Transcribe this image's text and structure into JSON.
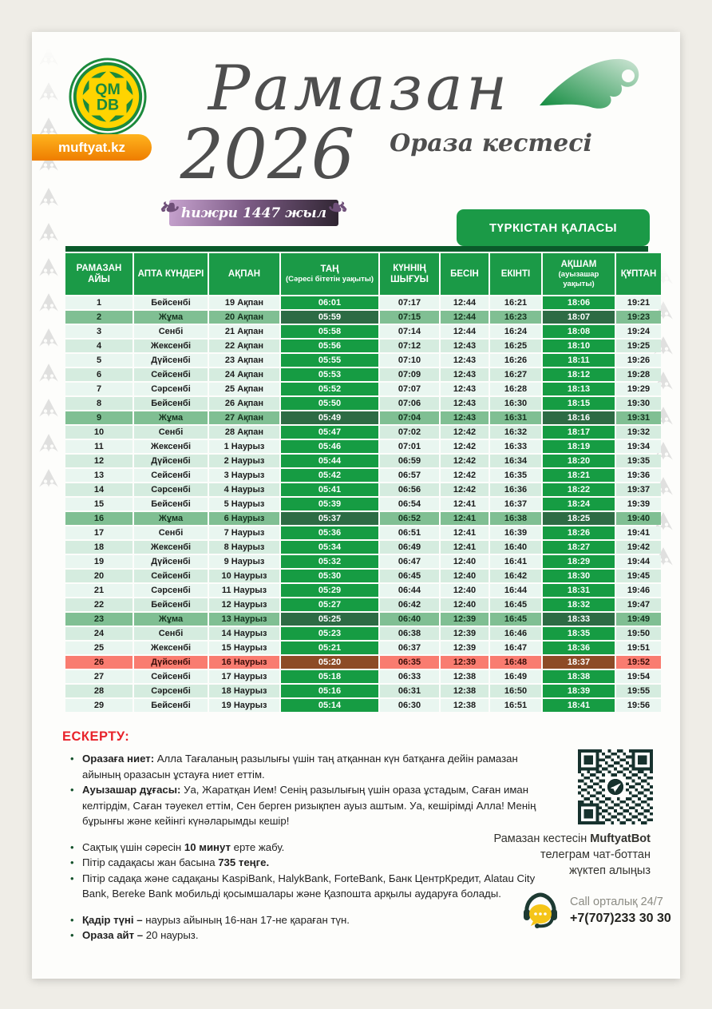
{
  "brand": {
    "logo_line1": "QM",
    "logo_line2": "DB",
    "site_label": "muftyat.kz"
  },
  "header": {
    "title_script": "Рамазан",
    "title_year": "2026",
    "subtitle": "Ораза кестесі",
    "hijri_ribbon": "һижри 1447 жыл",
    "city_button": "ТҮРКІСТАН ҚАЛАСЫ"
  },
  "table": {
    "columns": [
      {
        "label": "РАМАЗАН АЙЫ"
      },
      {
        "label": "АПТА КҮНДЕРІ"
      },
      {
        "label": "АҚПАН"
      },
      {
        "label": "ТАҢ",
        "sub": "(Сәресі бітетін уақыты)"
      },
      {
        "label": "КҮННІҢ ШЫҒУЫ"
      },
      {
        "label": "БЕСІН"
      },
      {
        "label": "ЕКІНТІ"
      },
      {
        "label": "АҚШАМ",
        "sub": "(ауызашар уақыты)"
      },
      {
        "label": "ҚҰПТАН"
      }
    ],
    "rows": [
      {
        "day": "1",
        "weekday": "Бейсенбі",
        "date": "19 Ақпан",
        "tan": "06:01",
        "sunrise": "07:17",
        "besin": "12:44",
        "ekinti": "16:21",
        "aqsham": "18:06",
        "quptan": "19:21",
        "highlight": ""
      },
      {
        "day": "2",
        "weekday": "Жұма",
        "date": "20 Ақпан",
        "tan": "05:59",
        "sunrise": "07:15",
        "besin": "12:44",
        "ekinti": "16:23",
        "aqsham": "18:07",
        "quptan": "19:23",
        "highlight": "friday"
      },
      {
        "day": "3",
        "weekday": "Сенбі",
        "date": "21 Ақпан",
        "tan": "05:58",
        "sunrise": "07:14",
        "besin": "12:44",
        "ekinti": "16:24",
        "aqsham": "18:08",
        "quptan": "19:24",
        "highlight": ""
      },
      {
        "day": "4",
        "weekday": "Жексенбі",
        "date": "22 Ақпан",
        "tan": "05:56",
        "sunrise": "07:12",
        "besin": "12:43",
        "ekinti": "16:25",
        "aqsham": "18:10",
        "quptan": "19:25",
        "highlight": ""
      },
      {
        "day": "5",
        "weekday": "Дүйсенбі",
        "date": "23 Ақпан",
        "tan": "05:55",
        "sunrise": "07:10",
        "besin": "12:43",
        "ekinti": "16:26",
        "aqsham": "18:11",
        "quptan": "19:26",
        "highlight": ""
      },
      {
        "day": "6",
        "weekday": "Сейсенбі",
        "date": "24 Ақпан",
        "tan": "05:53",
        "sunrise": "07:09",
        "besin": "12:43",
        "ekinti": "16:27",
        "aqsham": "18:12",
        "quptan": "19:28",
        "highlight": ""
      },
      {
        "day": "7",
        "weekday": "Сәрсенбі",
        "date": "25 Ақпан",
        "tan": "05:52",
        "sunrise": "07:07",
        "besin": "12:43",
        "ekinti": "16:28",
        "aqsham": "18:13",
        "quptan": "19:29",
        "highlight": ""
      },
      {
        "day": "8",
        "weekday": "Бейсенбі",
        "date": "26 Ақпан",
        "tan": "05:50",
        "sunrise": "07:06",
        "besin": "12:43",
        "ekinti": "16:30",
        "aqsham": "18:15",
        "quptan": "19:30",
        "highlight": ""
      },
      {
        "day": "9",
        "weekday": "Жұма",
        "date": "27 Ақпан",
        "tan": "05:49",
        "sunrise": "07:04",
        "besin": "12:43",
        "ekinti": "16:31",
        "aqsham": "18:16",
        "quptan": "19:31",
        "highlight": "friday"
      },
      {
        "day": "10",
        "weekday": "Сенбі",
        "date": "28 Ақпан",
        "tan": "05:47",
        "sunrise": "07:02",
        "besin": "12:42",
        "ekinti": "16:32",
        "aqsham": "18:17",
        "quptan": "19:32",
        "highlight": ""
      },
      {
        "day": "11",
        "weekday": "Жексенбі",
        "date": "1 Наурыз",
        "tan": "05:46",
        "sunrise": "07:01",
        "besin": "12:42",
        "ekinti": "16:33",
        "aqsham": "18:19",
        "quptan": "19:34",
        "highlight": ""
      },
      {
        "day": "12",
        "weekday": "Дүйсенбі",
        "date": "2 Наурыз",
        "tan": "05:44",
        "sunrise": "06:59",
        "besin": "12:42",
        "ekinti": "16:34",
        "aqsham": "18:20",
        "quptan": "19:35",
        "highlight": ""
      },
      {
        "day": "13",
        "weekday": "Сейсенбі",
        "date": "3 Наурыз",
        "tan": "05:42",
        "sunrise": "06:57",
        "besin": "12:42",
        "ekinti": "16:35",
        "aqsham": "18:21",
        "quptan": "19:36",
        "highlight": ""
      },
      {
        "day": "14",
        "weekday": "Сәрсенбі",
        "date": "4 Наурыз",
        "tan": "05:41",
        "sunrise": "06:56",
        "besin": "12:42",
        "ekinti": "16:36",
        "aqsham": "18:22",
        "quptan": "19:37",
        "highlight": ""
      },
      {
        "day": "15",
        "weekday": "Бейсенбі",
        "date": "5 Наурыз",
        "tan": "05:39",
        "sunrise": "06:54",
        "besin": "12:41",
        "ekinti": "16:37",
        "aqsham": "18:24",
        "quptan": "19:39",
        "highlight": ""
      },
      {
        "day": "16",
        "weekday": "Жұма",
        "date": "6 Наурыз",
        "tan": "05:37",
        "sunrise": "06:52",
        "besin": "12:41",
        "ekinti": "16:38",
        "aqsham": "18:25",
        "quptan": "19:40",
        "highlight": "friday"
      },
      {
        "day": "17",
        "weekday": "Сенбі",
        "date": "7 Наурыз",
        "tan": "05:36",
        "sunrise": "06:51",
        "besin": "12:41",
        "ekinti": "16:39",
        "aqsham": "18:26",
        "quptan": "19:41",
        "highlight": ""
      },
      {
        "day": "18",
        "weekday": "Жексенбі",
        "date": "8 Наурыз",
        "tan": "05:34",
        "sunrise": "06:49",
        "besin": "12:41",
        "ekinti": "16:40",
        "aqsham": "18:27",
        "quptan": "19:42",
        "highlight": ""
      },
      {
        "day": "19",
        "weekday": "Дүйсенбі",
        "date": "9 Наурыз",
        "tan": "05:32",
        "sunrise": "06:47",
        "besin": "12:40",
        "ekinti": "16:41",
        "aqsham": "18:29",
        "quptan": "19:44",
        "highlight": ""
      },
      {
        "day": "20",
        "weekday": "Сейсенбі",
        "date": "10 Наурыз",
        "tan": "05:30",
        "sunrise": "06:45",
        "besin": "12:40",
        "ekinti": "16:42",
        "aqsham": "18:30",
        "quptan": "19:45",
        "highlight": ""
      },
      {
        "day": "21",
        "weekday": "Сәрсенбі",
        "date": "11 Наурыз",
        "tan": "05:29",
        "sunrise": "06:44",
        "besin": "12:40",
        "ekinti": "16:44",
        "aqsham": "18:31",
        "quptan": "19:46",
        "highlight": ""
      },
      {
        "day": "22",
        "weekday": "Бейсенбі",
        "date": "12 Наурыз",
        "tan": "05:27",
        "sunrise": "06:42",
        "besin": "12:40",
        "ekinti": "16:45",
        "aqsham": "18:32",
        "quptan": "19:47",
        "highlight": ""
      },
      {
        "day": "23",
        "weekday": "Жұма",
        "date": "13 Наурыз",
        "tan": "05:25",
        "sunrise": "06:40",
        "besin": "12:39",
        "ekinti": "16:45",
        "aqsham": "18:33",
        "quptan": "19:49",
        "highlight": "friday"
      },
      {
        "day": "24",
        "weekday": "Сенбі",
        "date": "14 Наурыз",
        "tan": "05:23",
        "sunrise": "06:38",
        "besin": "12:39",
        "ekinti": "16:46",
        "aqsham": "18:35",
        "quptan": "19:50",
        "highlight": ""
      },
      {
        "day": "25",
        "weekday": "Жексенбі",
        "date": "15 Наурыз",
        "tan": "05:21",
        "sunrise": "06:37",
        "besin": "12:39",
        "ekinti": "16:47",
        "aqsham": "18:36",
        "quptan": "19:51",
        "highlight": ""
      },
      {
        "day": "26",
        "weekday": "Дүйсенбі",
        "date": "16 Наурыз",
        "tan": "05:20",
        "sunrise": "06:35",
        "besin": "12:39",
        "ekinti": "16:48",
        "aqsham": "18:37",
        "quptan": "19:52",
        "highlight": "qadir"
      },
      {
        "day": "27",
        "weekday": "Сейсенбі",
        "date": "17 Наурыз",
        "tan": "05:18",
        "sunrise": "06:33",
        "besin": "12:38",
        "ekinti": "16:49",
        "aqsham": "18:38",
        "quptan": "19:54",
        "highlight": ""
      },
      {
        "day": "28",
        "weekday": "Сәрсенбі",
        "date": "18 Наурыз",
        "tan": "05:16",
        "sunrise": "06:31",
        "besin": "12:38",
        "ekinti": "16:50",
        "aqsham": "18:39",
        "quptan": "19:55",
        "highlight": ""
      },
      {
        "day": "29",
        "weekday": "Бейсенбі",
        "date": "19 Наурыз",
        "tan": "05:14",
        "sunrise": "06:30",
        "besin": "12:38",
        "ekinti": "16:51",
        "aqsham": "18:41",
        "quptan": "19:56",
        "highlight": ""
      }
    ]
  },
  "notes": {
    "heading": "ЕСКЕРТУ:",
    "items": [
      {
        "spacer_before": false,
        "segments": [
          {
            "t": "Оразаға ниет: ",
            "b": true
          },
          {
            "t": "Алла Тағаланың разылығы үшін таң атқаннан күн батқанға дейін рамазан айының оразасын ұстауға ниет еттім.",
            "b": false
          }
        ]
      },
      {
        "spacer_before": false,
        "segments": [
          {
            "t": "Ауызашар дұғасы: ",
            "b": true
          },
          {
            "t": "Уа, Жаратқан Ием! Сенің разылығың үшін ораза ұстадым, Саған иман келтірдім, Саған тәуекел еттім, Сен берген ризықпен ауыз аштым. Уа, кешірімді Алла! Менің бұрынғы және кейінгі күнәларымды кешір!",
            "b": false
          }
        ]
      },
      {
        "spacer_before": true,
        "segments": [
          {
            "t": "Сақтық үшін сәресін ",
            "b": false
          },
          {
            "t": "10 минут",
            "b": true
          },
          {
            "t": " ерте жабу.",
            "b": false
          }
        ]
      },
      {
        "spacer_before": false,
        "segments": [
          {
            "t": "Пітір садақасы жан басына ",
            "b": false
          },
          {
            "t": "735 теңге.",
            "b": true
          }
        ]
      },
      {
        "spacer_before": false,
        "segments": [
          {
            "t": "Пітір садақа және садақаны KaspiBank, HalykBank, ForteBank, Банк ЦентрКредит, Alatau City Bank, Bereke Bank мобильді қосымшалары және Қазпошта арқылы аударуға болады.",
            "b": false
          }
        ]
      },
      {
        "spacer_before": true,
        "segments": [
          {
            "t": "Қадір түні – ",
            "b": true
          },
          {
            "t": "наурыз айының 16-нан 17-не қараған түн.",
            "b": false
          }
        ]
      },
      {
        "spacer_before": false,
        "segments": [
          {
            "t": "Ораза айт – ",
            "b": true
          },
          {
            "t": "20 наурыз.",
            "b": false
          }
        ]
      }
    ]
  },
  "footer": {
    "qr_caption_lines": [
      [
        {
          "t": "Рамазан кестесін ",
          "b": false
        },
        {
          "t": "MuftyatBot",
          "b": true
        }
      ],
      [
        {
          "t": "телеграм чат-боттан",
          "b": false
        }
      ],
      [
        {
          "t": "жүктеп алыңыз",
          "b": false
        }
      ]
    ],
    "call_label": "Call орталық 24/7",
    "call_phone": "+7(707)233 30 30"
  },
  "colors": {
    "accent_green": "#1b9a47",
    "dark_green_bar": "#0a5a2a",
    "time_cell_green": "#169c43",
    "friday_row": "#80bf93",
    "friday_time_cell": "#2d6b44",
    "qadir_row_red": "#f97c70",
    "qadir_time_brown": "#8d4b26",
    "banner_orange": "#ee7d00",
    "ribbon_purple": "#7d5c86",
    "alert_red": "#e8232b",
    "call_bubble_yellow": "#f5c518"
  }
}
